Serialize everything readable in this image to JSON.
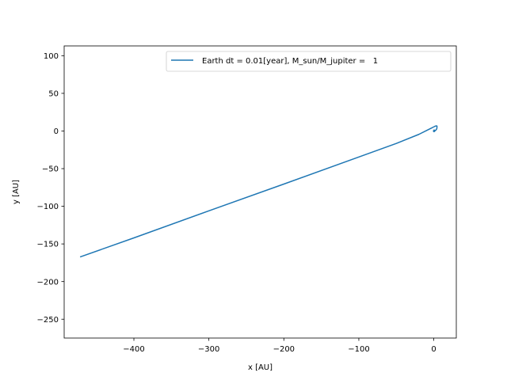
{
  "chart_data": {
    "type": "line",
    "title": "",
    "xlabel": "x [AU]",
    "ylabel": "y [AU]",
    "xlim": [
      -493,
      30
    ],
    "ylim": [
      -275,
      113
    ],
    "grid": false,
    "legend_position": "upper right",
    "xticks": [
      {
        "value": -400,
        "label": "−400"
      },
      {
        "value": -300,
        "label": "−300"
      },
      {
        "value": -200,
        "label": "−200"
      },
      {
        "value": -100,
        "label": "−100"
      },
      {
        "value": 0,
        "label": "0"
      }
    ],
    "yticks": [
      {
        "value": 100,
        "label": "100"
      },
      {
        "value": 50,
        "label": "50"
      },
      {
        "value": 0,
        "label": "0"
      },
      {
        "value": -50,
        "label": "−50"
      },
      {
        "value": -100,
        "label": "−100"
      },
      {
        "value": -150,
        "label": "−150"
      },
      {
        "value": -200,
        "label": "−200"
      },
      {
        "value": -250,
        "label": "−250"
      }
    ],
    "series": [
      {
        "name": "Earth dt = 0.01[year], M_sun/M_jupiter =   1",
        "color": "#1f77b4",
        "points": [
          [
            -471,
            -167
          ],
          [
            -400,
            -142
          ],
          [
            -300,
            -106
          ],
          [
            -200,
            -70.5
          ],
          [
            -100,
            -34.5
          ],
          [
            -50,
            -16.5
          ],
          [
            -20,
            -4.5
          ],
          [
            -8,
            1.5
          ],
          [
            -3,
            4
          ],
          [
            0,
            5.5
          ],
          [
            2,
            6.5
          ],
          [
            4,
            6.8
          ],
          [
            4.3,
            6
          ],
          [
            4,
            3
          ],
          [
            3,
            1.5
          ],
          [
            2,
            0.5
          ],
          [
            1,
            0.6
          ],
          [
            0.4,
            1.4
          ],
          [
            0.5,
            0.2
          ],
          [
            1.2,
            0.9
          ],
          [
            1.0,
            -0.6
          ],
          [
            0.2,
            0.3
          ],
          [
            0.8,
            0.5
          ],
          [
            -0.5,
            0.2
          ],
          [
            0.3,
            -0.9
          ],
          [
            0.9,
            0.8
          ],
          [
            -0.2,
            -0.6
          ],
          [
            0.6,
            0.1
          ]
        ]
      }
    ]
  }
}
